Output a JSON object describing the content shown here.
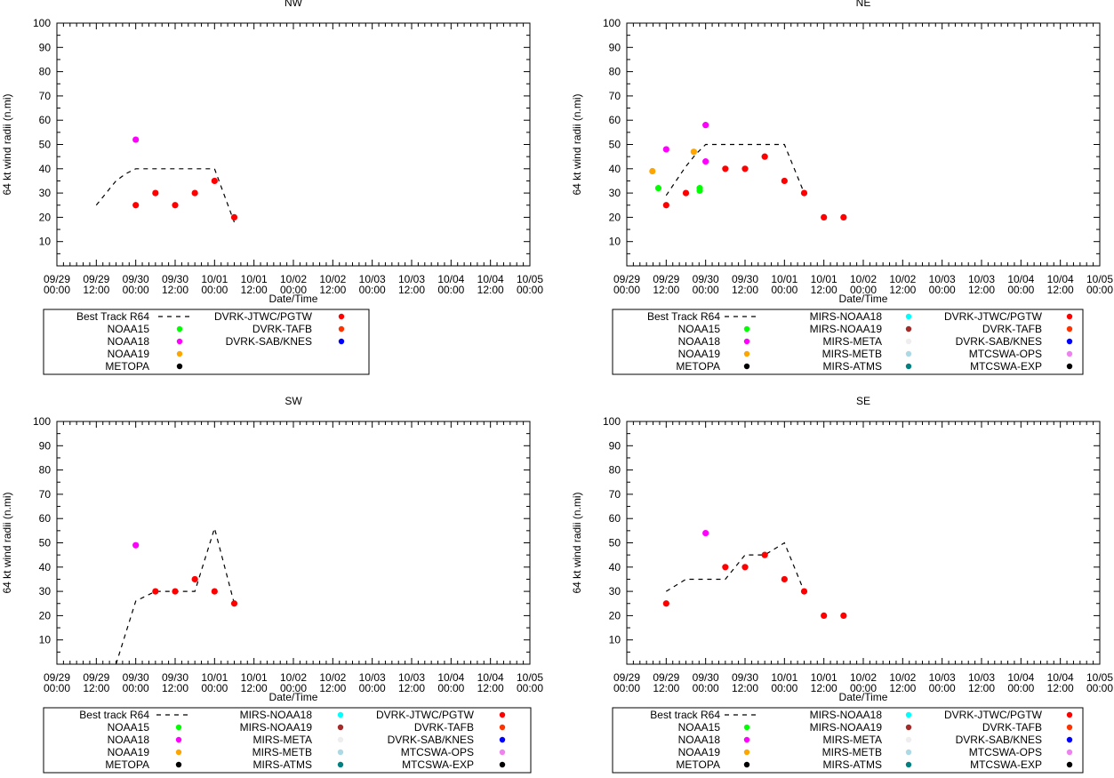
{
  "chart_data": [
    {
      "type": "scatter",
      "title": "NW",
      "xlabel": "Date/Time",
      "ylabel": "64 kt wind radii (n.mi)",
      "ylim": [
        0,
        100
      ],
      "yticks": [
        10,
        20,
        30,
        40,
        50,
        60,
        70,
        80,
        90,
        100
      ],
      "xlim": [
        0,
        12
      ],
      "xtick_labels": [
        [
          "09/29",
          "00:00"
        ],
        [
          "09/29",
          "12:00"
        ],
        [
          "09/30",
          "00:00"
        ],
        [
          "09/30",
          "12:00"
        ],
        [
          "10/01",
          "00:00"
        ],
        [
          "10/01",
          "12:00"
        ],
        [
          "10/02",
          "00:00"
        ],
        [
          "10/02",
          "12:00"
        ],
        [
          "10/03",
          "00:00"
        ],
        [
          "10/03",
          "12:00"
        ],
        [
          "10/04",
          "00:00"
        ],
        [
          "10/04",
          "12:00"
        ],
        [
          "10/05",
          "00:00"
        ]
      ],
      "best_track": {
        "name": "Best Track R64",
        "x": [
          1.0,
          1.5,
          1.75,
          2.0,
          3.0,
          4.0,
          4.5
        ],
        "y": [
          25,
          35,
          38,
          40,
          40,
          40,
          18
        ]
      },
      "series": [
        {
          "name": "DVRK-JTWC/PGTW",
          "color": "#ff0000",
          "x": [
            2.0,
            2.5,
            3.0,
            3.5,
            4.0,
            4.5
          ],
          "y": [
            25,
            30,
            25,
            30,
            35,
            20
          ]
        },
        {
          "name": "NOAA18",
          "color": "#ff00ff",
          "x": [
            2.0
          ],
          "y": [
            52
          ]
        }
      ],
      "legend": {
        "columns": [
          [
            {
              "label": "Best Track R64",
              "kind": "line"
            },
            {
              "label": "NOAA15",
              "color": "#00ff00"
            },
            {
              "label": "NOAA18",
              "color": "#ff00ff"
            },
            {
              "label": "NOAA19",
              "color": "#ffa500"
            },
            {
              "label": "METOPA",
              "color": "#000000"
            }
          ],
          [
            {
              "label": "DVRK-JTWC/PGTW",
              "color": "#ff0000"
            },
            {
              "label": "DVRK-TAFB",
              "color": "#ff3300"
            },
            {
              "label": "DVRK-SAB/KNES",
              "color": "#0000ff"
            }
          ]
        ]
      }
    },
    {
      "type": "scatter",
      "title": "NE",
      "xlabel": "Date/Time",
      "ylabel": "64 kt wind radii (n.mi)",
      "ylim": [
        0,
        100
      ],
      "yticks": [
        10,
        20,
        30,
        40,
        50,
        60,
        70,
        80,
        90,
        100
      ],
      "xlim": [
        0,
        12
      ],
      "xtick_labels": [
        [
          "09/29",
          "00:00"
        ],
        [
          "09/29",
          "12:00"
        ],
        [
          "09/30",
          "00:00"
        ],
        [
          "09/30",
          "12:00"
        ],
        [
          "10/01",
          "00:00"
        ],
        [
          "10/01",
          "12:00"
        ],
        [
          "10/02",
          "00:00"
        ],
        [
          "10/02",
          "12:00"
        ],
        [
          "10/03",
          "00:00"
        ],
        [
          "10/03",
          "12:00"
        ],
        [
          "10/04",
          "00:00"
        ],
        [
          "10/04",
          "12:00"
        ],
        [
          "10/05",
          "00:00"
        ]
      ],
      "best_track": {
        "name": "Best Track R64",
        "x": [
          1.0,
          1.25,
          1.5,
          1.75,
          2.0,
          3.0,
          4.0,
          4.5
        ],
        "y": [
          29,
          35,
          41,
          46,
          50,
          50,
          50,
          30
        ]
      },
      "series": [
        {
          "name": "DVRK-JTWC/PGTW",
          "color": "#ff0000",
          "x": [
            1.0,
            1.5,
            2.5,
            3.0,
            3.5,
            4.0,
            4.5,
            5.0,
            5.5
          ],
          "y": [
            25,
            30,
            40,
            40,
            45,
            35,
            30,
            20,
            20
          ]
        },
        {
          "name": "NOAA15",
          "color": "#00ff00",
          "x": [
            0.8,
            1.85,
            1.85
          ],
          "y": [
            32,
            32,
            31
          ]
        },
        {
          "name": "NOAA18",
          "color": "#ff00ff",
          "x": [
            1.0,
            2.0,
            2.0
          ],
          "y": [
            48,
            58,
            43
          ]
        },
        {
          "name": "NOAA19",
          "color": "#ffa500",
          "x": [
            0.65,
            1.7
          ],
          "y": [
            39,
            47
          ]
        }
      ],
      "legend": {
        "columns": [
          [
            {
              "label": "Best Track R64",
              "kind": "line"
            },
            {
              "label": "NOAA15",
              "color": "#00ff00"
            },
            {
              "label": "NOAA18",
              "color": "#ff00ff"
            },
            {
              "label": "NOAA19",
              "color": "#ffa500"
            },
            {
              "label": "METOPA",
              "color": "#000000"
            }
          ],
          [
            {
              "label": "MIRS-NOAA18",
              "color": "#00ffff"
            },
            {
              "label": "MIRS-NOAA19",
              "color": "#a52a2a"
            },
            {
              "label": "MIRS-META",
              "color": "#eeeeee"
            },
            {
              "label": "MIRS-METB",
              "color": "#add8e6"
            },
            {
              "label": "MIRS-ATMS",
              "color": "#008080"
            }
          ],
          [
            {
              "label": "DVRK-JTWC/PGTW",
              "color": "#ff0000"
            },
            {
              "label": "DVRK-TAFB",
              "color": "#ff3300"
            },
            {
              "label": "DVRK-SAB/KNES",
              "color": "#0000ff"
            },
            {
              "label": "MTCSWA-OPS",
              "color": "#ee82ee"
            },
            {
              "label": "MTCSWA-EXP",
              "color": "#000000"
            }
          ]
        ]
      }
    },
    {
      "type": "scatter",
      "title": "SW",
      "xlabel": "Date/Time",
      "ylabel": "64 kt wind radii (n.mi)",
      "ylim": [
        0,
        100
      ],
      "yticks": [
        10,
        20,
        30,
        40,
        50,
        60,
        70,
        80,
        90,
        100
      ],
      "xlim": [
        0,
        12
      ],
      "xtick_labels": [
        [
          "09/29",
          "00:00"
        ],
        [
          "09/29",
          "12:00"
        ],
        [
          "09/30",
          "00:00"
        ],
        [
          "09/30",
          "12:00"
        ],
        [
          "10/01",
          "00:00"
        ],
        [
          "10/01",
          "12:00"
        ],
        [
          "10/02",
          "00:00"
        ],
        [
          "10/02",
          "12:00"
        ],
        [
          "10/03",
          "00:00"
        ],
        [
          "10/03",
          "12:00"
        ],
        [
          "10/04",
          "00:00"
        ],
        [
          "10/04",
          "12:00"
        ],
        [
          "10/05",
          "00:00"
        ]
      ],
      "best_track": {
        "name": "Best track R64",
        "x": [
          1.5,
          2.0,
          2.5,
          3.0,
          3.5,
          4.0,
          4.5
        ],
        "y": [
          0,
          26,
          30,
          30,
          30,
          56,
          25
        ]
      },
      "series": [
        {
          "name": "DVRK-JTWC/PGTW",
          "color": "#ff0000",
          "x": [
            2.5,
            3.0,
            3.5,
            4.0,
            4.5
          ],
          "y": [
            30,
            30,
            35,
            30,
            25
          ]
        },
        {
          "name": "NOAA18",
          "color": "#ff00ff",
          "x": [
            2.0
          ],
          "y": [
            49
          ]
        }
      ],
      "legend": {
        "columns": [
          [
            {
              "label": "Best track R64",
              "kind": "line"
            },
            {
              "label": "NOAA15",
              "color": "#00ff00"
            },
            {
              "label": "NOAA18",
              "color": "#ff00ff"
            },
            {
              "label": "NOAA19",
              "color": "#ffa500"
            },
            {
              "label": "METOPA",
              "color": "#000000"
            }
          ],
          [
            {
              "label": "MIRS-NOAA18",
              "color": "#00ffff"
            },
            {
              "label": "MIRS-NOAA19",
              "color": "#a52a2a"
            },
            {
              "label": "MIRS-META",
              "color": "#eeeeee"
            },
            {
              "label": "MIRS-METB",
              "color": "#add8e6"
            },
            {
              "label": "MIRS-ATMS",
              "color": "#008080"
            }
          ],
          [
            {
              "label": "DVRK-JTWC/PGTW",
              "color": "#ff0000"
            },
            {
              "label": "DVRK-TAFB",
              "color": "#ff3300"
            },
            {
              "label": "DVRK-SAB/KNES",
              "color": "#0000ff"
            },
            {
              "label": "MTCSWA-OPS",
              "color": "#ee82ee"
            },
            {
              "label": "MTCSWA-EXP",
              "color": "#000000"
            }
          ]
        ]
      }
    },
    {
      "type": "scatter",
      "title": "SE",
      "xlabel": "Date/Time",
      "ylabel": "64 kt wind radii (n.mi)",
      "ylim": [
        0,
        100
      ],
      "yticks": [
        10,
        20,
        30,
        40,
        50,
        60,
        70,
        80,
        90,
        100
      ],
      "xlim": [
        0,
        12
      ],
      "xtick_labels": [
        [
          "09/29",
          "00:00"
        ],
        [
          "09/29",
          "12:00"
        ],
        [
          "09/30",
          "00:00"
        ],
        [
          "09/30",
          "12:00"
        ],
        [
          "10/01",
          "00:00"
        ],
        [
          "10/01",
          "12:00"
        ],
        [
          "10/02",
          "00:00"
        ],
        [
          "10/02",
          "12:00"
        ],
        [
          "10/03",
          "00:00"
        ],
        [
          "10/03",
          "12:00"
        ],
        [
          "10/04",
          "00:00"
        ],
        [
          "10/04",
          "12:00"
        ],
        [
          "10/05",
          "00:00"
        ]
      ],
      "best_track": {
        "name": "Best track R64",
        "x": [
          1.0,
          1.5,
          2.0,
          2.5,
          3.0,
          3.5,
          4.0,
          4.5
        ],
        "y": [
          30,
          35,
          35,
          35,
          45,
          45,
          50,
          30
        ]
      },
      "series": [
        {
          "name": "DVRK-JTWC/PGTW",
          "color": "#ff0000",
          "x": [
            1.0,
            2.5,
            3.0,
            3.5,
            4.0,
            4.5,
            5.0,
            5.5
          ],
          "y": [
            25,
            40,
            40,
            45,
            35,
            30,
            20,
            20
          ]
        },
        {
          "name": "NOAA18",
          "color": "#ff00ff",
          "x": [
            2.0
          ],
          "y": [
            54
          ]
        }
      ],
      "legend": {
        "columns": [
          [
            {
              "label": "Best track R64",
              "kind": "line"
            },
            {
              "label": "NOAA15",
              "color": "#00ff00"
            },
            {
              "label": "NOAA18",
              "color": "#ff00ff"
            },
            {
              "label": "NOAA19",
              "color": "#ffa500"
            },
            {
              "label": "METOPA",
              "color": "#000000"
            }
          ],
          [
            {
              "label": "MIRS-NOAA18",
              "color": "#00ffff"
            },
            {
              "label": "MIRS-NOAA19",
              "color": "#a52a2a"
            },
            {
              "label": "MIRS-META",
              "color": "#eeeeee"
            },
            {
              "label": "MIRS-METB",
              "color": "#add8e6"
            },
            {
              "label": "MIRS-ATMS",
              "color": "#008080"
            }
          ],
          [
            {
              "label": "DVRK-JTWC/PGTW",
              "color": "#ff0000"
            },
            {
              "label": "DVRK-TAFB",
              "color": "#ff3300"
            },
            {
              "label": "DVRK-SAB/KNES",
              "color": "#0000ff"
            },
            {
              "label": "MTCSWA-OPS",
              "color": "#ee82ee"
            },
            {
              "label": "MTCSWA-EXP",
              "color": "#000000"
            }
          ]
        ]
      }
    }
  ]
}
